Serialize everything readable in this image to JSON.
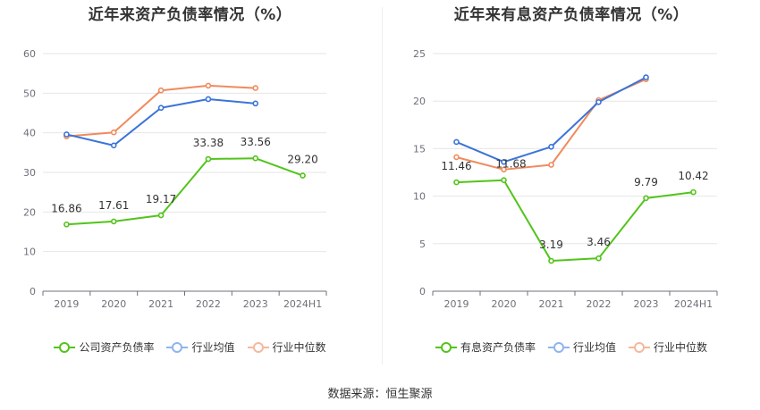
{
  "colors": {
    "company": "#52c41a",
    "avg": "#3a74d9",
    "median": "#f08a5d",
    "grid": "#e6e6e6",
    "axis": "#6e7079"
  },
  "source": "数据来源：恒生聚源",
  "chart_data": [
    {
      "type": "line",
      "title": "近年来资产负债率情况（%）",
      "categories": [
        "2019",
        "2020",
        "2021",
        "2022",
        "2023",
        "2024H1"
      ],
      "ylim": [
        0,
        60
      ],
      "yticks": [
        0,
        10,
        20,
        30,
        40,
        50,
        60
      ],
      "grid": true,
      "legend_position": "bottom",
      "series": [
        {
          "name": "公司资产负债率",
          "values": [
            16.86,
            17.61,
            19.17,
            33.38,
            33.56,
            29.2
          ],
          "labels": [
            "16.86",
            "17.61",
            "19.17",
            "33.38",
            "33.56",
            "29.20"
          ]
        },
        {
          "name": "行业均值",
          "values": [
            39.6,
            36.8,
            46.3,
            48.5,
            47.4,
            null
          ]
        },
        {
          "name": "行业中位数",
          "values": [
            39.1,
            40.1,
            50.7,
            51.9,
            51.3,
            null
          ]
        }
      ]
    },
    {
      "type": "line",
      "title": "近年来有息资产负债率情况（%）",
      "categories": [
        "2019",
        "2020",
        "2021",
        "2022",
        "2023",
        "2024H1"
      ],
      "ylim": [
        0,
        25
      ],
      "yticks": [
        0,
        5,
        10,
        15,
        20,
        25
      ],
      "grid": true,
      "legend_position": "bottom",
      "series": [
        {
          "name": "有息资产负债率",
          "values": [
            11.46,
            11.68,
            3.19,
            3.46,
            9.79,
            10.42
          ],
          "labels": [
            "11.46",
            "11.68",
            "3.19",
            "3.46",
            "9.79",
            "10.42"
          ]
        },
        {
          "name": "行业均值",
          "values": [
            15.7,
            13.6,
            15.2,
            19.9,
            22.5,
            null
          ]
        },
        {
          "name": "行业中位数",
          "values": [
            14.1,
            12.8,
            13.3,
            20.1,
            22.3,
            null
          ]
        }
      ]
    }
  ]
}
